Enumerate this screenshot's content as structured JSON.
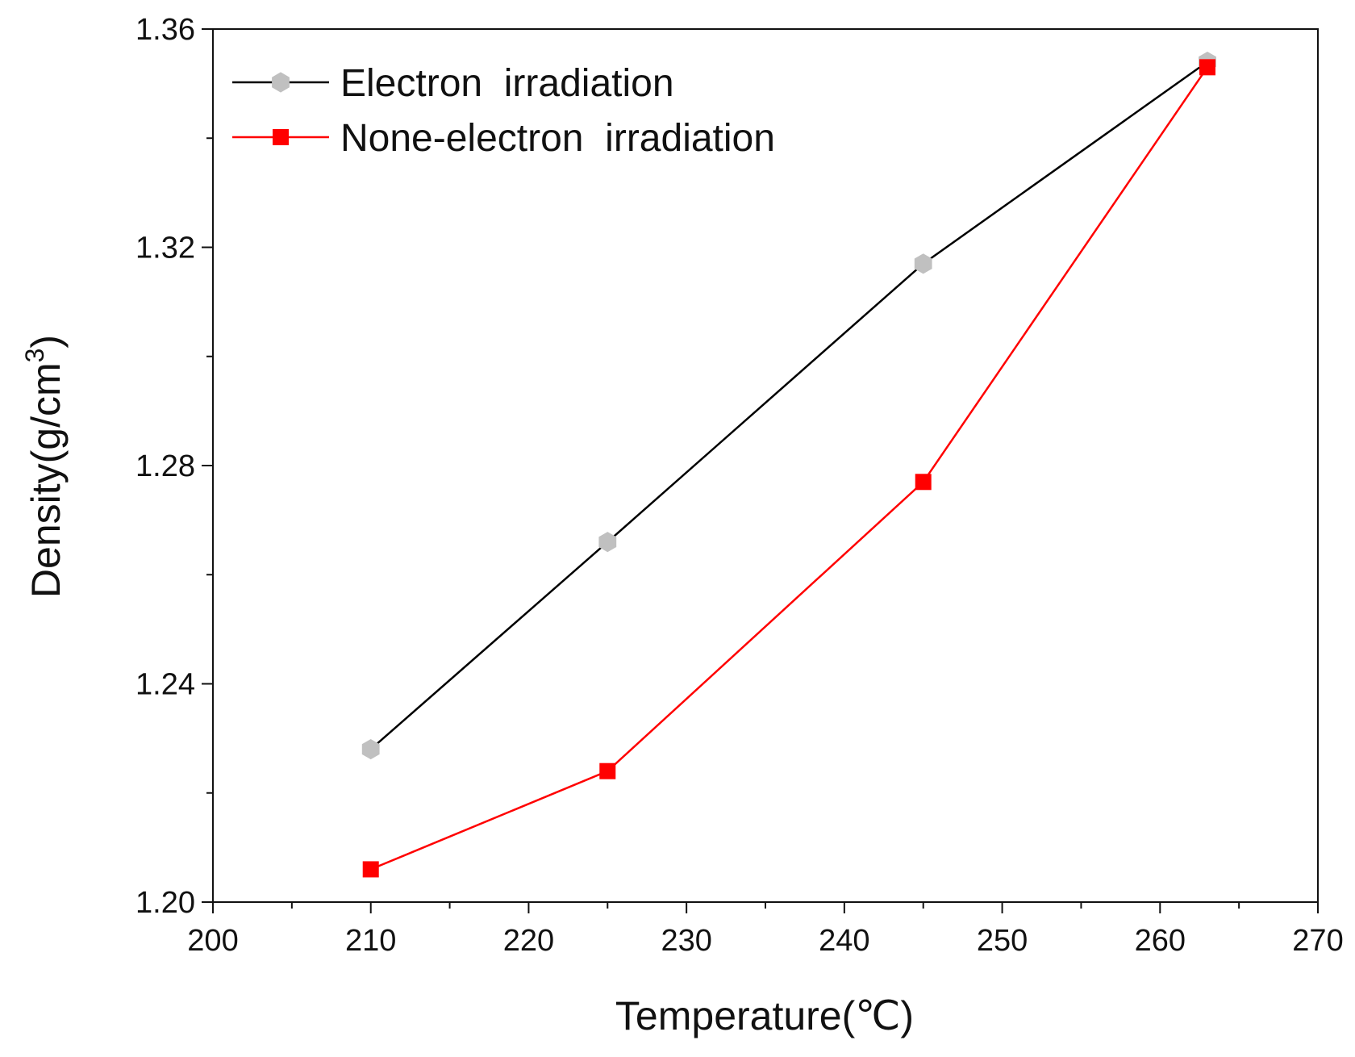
{
  "chart_data": {
    "type": "line",
    "title": "",
    "xlabel": "Temperature(℃)",
    "ylabel_main": "Density(g/cm",
    "ylabel_sup": "3",
    "ylabel_close": ")",
    "xlim": [
      200,
      270
    ],
    "ylim": [
      1.2,
      1.36
    ],
    "x_major_ticks": [
      200,
      210,
      220,
      230,
      240,
      250,
      260,
      270
    ],
    "x_tick_labels": [
      "200",
      "210",
      "220",
      "230",
      "240",
      "250",
      "260",
      "270"
    ],
    "x_minor_ticks": [
      205,
      215,
      225,
      235,
      245,
      255,
      265
    ],
    "y_major_ticks": [
      1.2,
      1.24,
      1.28,
      1.32,
      1.36
    ],
    "y_tick_labels": [
      "1.20",
      "1.24",
      "1.28",
      "1.32",
      "1.36"
    ],
    "y_minor_ticks": [
      1.22,
      1.26,
      1.3,
      1.34
    ],
    "grid": false,
    "legend_position": "top-left",
    "series": [
      {
        "name": "Electron  irradiation",
        "color": "#000000",
        "marker": "hexagon",
        "marker_color": "#c0c0c0",
        "x": [
          210,
          225,
          245,
          263
        ],
        "y": [
          1.228,
          1.266,
          1.317,
          1.354
        ]
      },
      {
        "name": "None-electron  irradiation",
        "color": "#ff0000",
        "marker": "square",
        "marker_color": "#ff0000",
        "x": [
          210,
          225,
          245,
          263
        ],
        "y": [
          1.206,
          1.224,
          1.277,
          1.353
        ]
      }
    ]
  }
}
